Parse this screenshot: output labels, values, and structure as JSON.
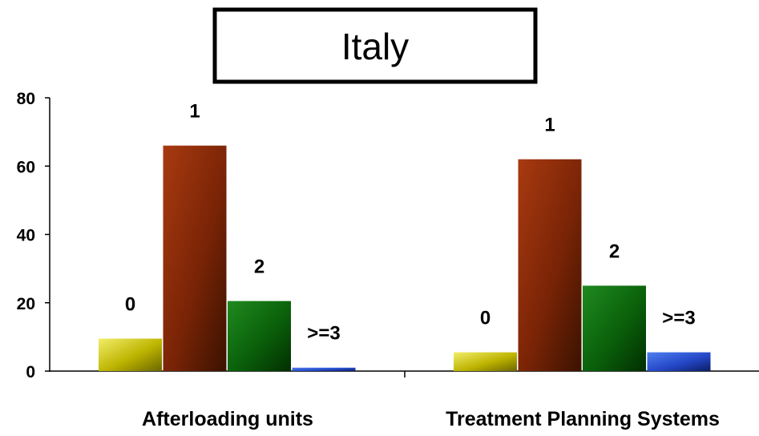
{
  "chart_data": {
    "type": "bar",
    "title": "Italy",
    "categories": [
      "Afterloading units",
      "Treatment Planning Systems"
    ],
    "series": [
      {
        "name": "0",
        "values": [
          9.5,
          5.5
        ]
      },
      {
        "name": "1",
        "values": [
          66,
          62
        ]
      },
      {
        "name": "2",
        "values": [
          20.5,
          25
        ]
      },
      {
        "name": ">=3",
        "values": [
          1,
          5.5
        ]
      }
    ],
    "ylim": [
      0,
      80
    ],
    "yticks": [
      "0",
      "20",
      "40",
      "60",
      "80"
    ],
    "xlabel": "",
    "ylabel": "",
    "grid": false,
    "legend": "none",
    "colors": {
      "0": [
        "#f2ee6a",
        "#bdb400",
        "#6b6600"
      ],
      "1": [
        "#a83a10",
        "#7a2406",
        "#3a1200"
      ],
      "2": [
        "#1f8a1f",
        "#0a600a",
        "#022e02"
      ],
      ">=3": [
        "#4f80f0",
        "#2548c8",
        "#0b1e66"
      ]
    }
  }
}
